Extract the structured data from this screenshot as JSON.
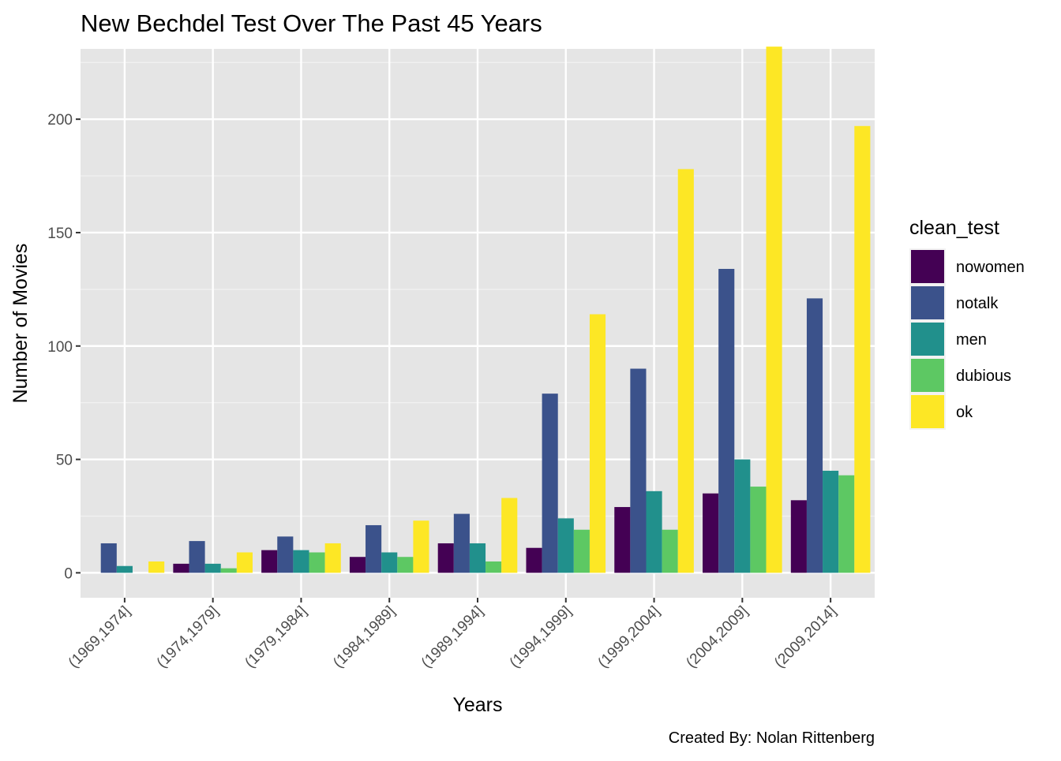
{
  "chart_data": {
    "type": "bar",
    "title": "New Bechdel Test Over The Past 45 Years",
    "xlabel": "Years",
    "ylabel": "Number of Movies",
    "caption": "Created By: Nolan Rittenberg",
    "legend_title": "clean_test",
    "legend_position": "right",
    "grid": true,
    "ylim": [
      -11,
      231
    ],
    "yticks": [
      0,
      50,
      100,
      150,
      200
    ],
    "categories": [
      "(1969,1974]",
      "(1974,1979]",
      "(1979,1984]",
      "(1984,1989]",
      "(1989,1994]",
      "(1994,1999]",
      "(1999,2004]",
      "(2004,2009]",
      "(2009,2014]"
    ],
    "series": [
      {
        "name": "nowomen",
        "color": "#440154",
        "values": [
          0,
          4,
          10,
          7,
          13,
          11,
          29,
          35,
          32
        ]
      },
      {
        "name": "notalk",
        "color": "#3B528B",
        "values": [
          13,
          14,
          16,
          21,
          26,
          79,
          90,
          134,
          121
        ]
      },
      {
        "name": "men",
        "color": "#21908C",
        "values": [
          3,
          4,
          10,
          9,
          13,
          24,
          36,
          50,
          45
        ]
      },
      {
        "name": "dubious",
        "color": "#5DC863",
        "values": [
          0,
          2,
          9,
          7,
          5,
          19,
          19,
          38,
          43
        ]
      },
      {
        "name": "ok",
        "color": "#FDE725",
        "values": [
          5,
          9,
          13,
          23,
          33,
          114,
          178,
          232,
          197
        ]
      }
    ]
  }
}
